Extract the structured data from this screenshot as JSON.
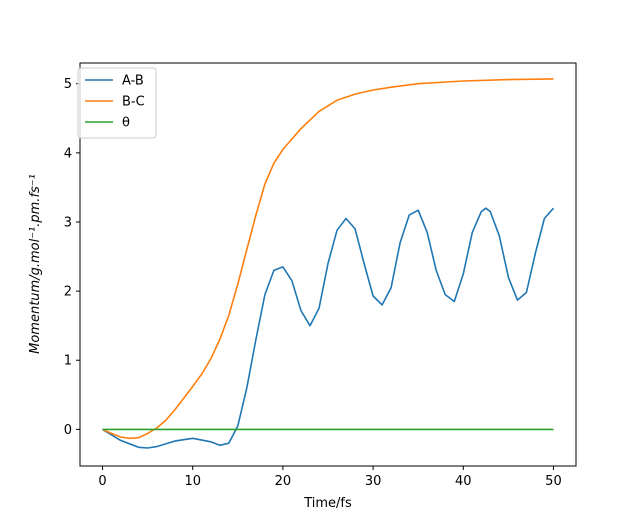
{
  "chart_data": {
    "type": "line",
    "xlabel": "Time/fs",
    "ylabel": "Momentum/g.mol⁻¹.pm.fs⁻¹",
    "xlim": [
      -2.5,
      52.5
    ],
    "ylim": [
      -0.53,
      5.3
    ],
    "xticks": [
      0,
      10,
      20,
      30,
      40,
      50
    ],
    "yticks": [
      0,
      1,
      2,
      3,
      4,
      5
    ],
    "legend_position": "top-left",
    "grid": false,
    "series": [
      {
        "name": "A-B",
        "color": "#1f77b4",
        "x": [
          0,
          2,
          4,
          5,
          6,
          8,
          10,
          12,
          13,
          14,
          15,
          16,
          17,
          18,
          19,
          20,
          21,
          22,
          23,
          24,
          25,
          26,
          27,
          28,
          29,
          30,
          31,
          32,
          33,
          34,
          35,
          36,
          37,
          38,
          39,
          40,
          41,
          42,
          42.5,
          43,
          44,
          45,
          46,
          47,
          48,
          49,
          50
        ],
        "y": [
          0,
          -0.16,
          -0.26,
          -0.27,
          -0.25,
          -0.17,
          -0.13,
          -0.18,
          -0.23,
          -0.2,
          0.05,
          0.6,
          1.3,
          1.95,
          2.3,
          2.35,
          2.15,
          1.72,
          1.5,
          1.75,
          2.4,
          2.88,
          3.05,
          2.9,
          2.4,
          1.93,
          1.8,
          2.05,
          2.7,
          3.1,
          3.17,
          2.85,
          2.3,
          1.95,
          1.85,
          2.25,
          2.85,
          3.15,
          3.2,
          3.15,
          2.8,
          2.2,
          1.87,
          1.98,
          2.55,
          3.05,
          3.2
        ]
      },
      {
        "name": "B-C",
        "color": "#ff7f0e",
        "x": [
          0,
          1,
          2,
          3,
          4,
          5,
          6,
          7,
          8,
          9,
          10,
          11,
          12,
          13,
          14,
          15,
          16,
          17,
          18,
          19,
          20,
          22,
          24,
          26,
          28,
          30,
          32,
          35,
          40,
          45,
          50
        ],
        "y": [
          0,
          -0.06,
          -0.11,
          -0.13,
          -0.12,
          -0.06,
          0.02,
          0.13,
          0.28,
          0.45,
          0.62,
          0.8,
          1.02,
          1.3,
          1.65,
          2.1,
          2.6,
          3.1,
          3.55,
          3.85,
          4.05,
          4.35,
          4.6,
          4.76,
          4.85,
          4.91,
          4.95,
          5.0,
          5.04,
          5.06,
          5.07
        ]
      },
      {
        "name": "θ",
        "color": "#2ca02c",
        "x": [
          0,
          50
        ],
        "y": [
          0,
          0
        ]
      }
    ]
  }
}
